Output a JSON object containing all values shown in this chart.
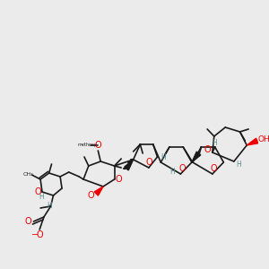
{
  "bg_color": "#ebebeb",
  "bond_color": "#1a1a1a",
  "oxygen_color": "#ee0000",
  "stereo_color": "#5a9090",
  "figsize": [
    3.0,
    3.0
  ],
  "dpi": 100,
  "xlim": [
    0,
    300
  ],
  "ylim": [
    0,
    300
  ]
}
